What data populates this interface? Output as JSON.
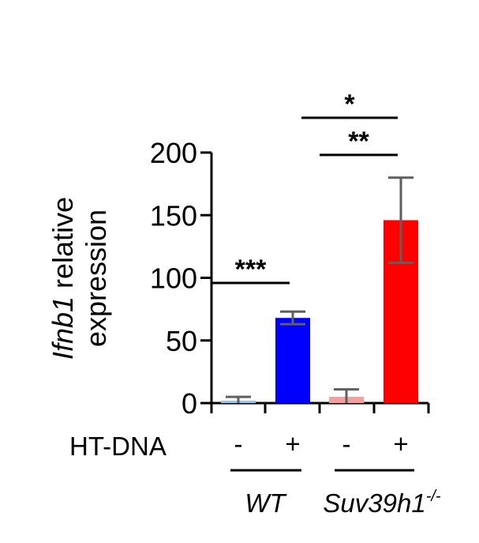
{
  "chart_data": {
    "type": "bar",
    "ylabel_parts": [
      "Ifnb1",
      " relative",
      "expression"
    ],
    "ylim": [
      0,
      200
    ],
    "yticks": [
      0,
      50,
      100,
      150,
      200
    ],
    "treatment_label": "HT-DNA",
    "categories": [
      "-",
      "+",
      "-",
      "+"
    ],
    "groups": [
      "WT",
      "Suv39h1"
    ],
    "group_superscript": "-/-",
    "values": [
      2,
      68,
      5,
      146
    ],
    "errors": [
      3,
      5,
      6,
      34
    ],
    "colors": [
      "#9dc3e6",
      "#0000ff",
      "#f4a0a0",
      "#ff0000"
    ],
    "significance": [
      {
        "label": "***",
        "from": 0,
        "to": 1
      },
      {
        "label": "**",
        "from": 2,
        "to": 3
      },
      {
        "label": "*",
        "from": 1,
        "to": 3
      }
    ],
    "grid": false,
    "legend": "none"
  }
}
